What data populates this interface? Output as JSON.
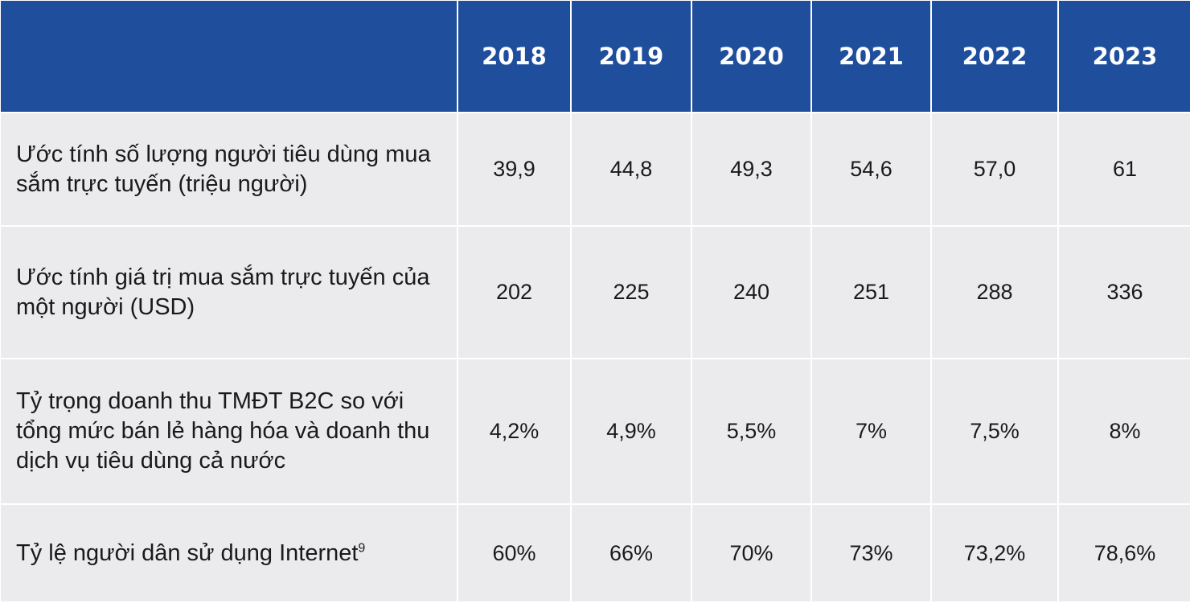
{
  "table": {
    "years": [
      "2018",
      "2019",
      "2020",
      "2021",
      "2022",
      "2023"
    ],
    "rows": [
      {
        "label": "Ước tính số lượng người tiêu dùng mua sắm trực tuyến (triệu người)",
        "footnote": "",
        "values": [
          "39,9",
          "44,8",
          "49,3",
          "54,6",
          "57,0",
          "61"
        ]
      },
      {
        "label": "Ước tính giá trị mua sắm trực tuyến của một người (USD)",
        "footnote": "",
        "values": [
          "202",
          "225",
          "240",
          "251",
          "288",
          "336"
        ]
      },
      {
        "label": "Tỷ trọng doanh thu TMĐT B2C so với tổng mức bán lẻ hàng hóa và doanh thu dịch vụ tiêu dùng cả nước",
        "footnote": "",
        "values": [
          "4,2%",
          "4,9%",
          "5,5%",
          "7%",
          "7,5%",
          "8%"
        ]
      },
      {
        "label": "Tỷ lệ người dân sử dụng Internet",
        "footnote": "9",
        "values": [
          "60%",
          "66%",
          "70%",
          "73%",
          "73,2%",
          "78,6%"
        ]
      }
    ]
  },
  "colors": {
    "header_bg": "#1f4e9c",
    "header_text": "#ffffff",
    "cell_bg": "#ebebed",
    "cell_text": "#1a1a1a",
    "grid_lines": "#ffffff"
  }
}
